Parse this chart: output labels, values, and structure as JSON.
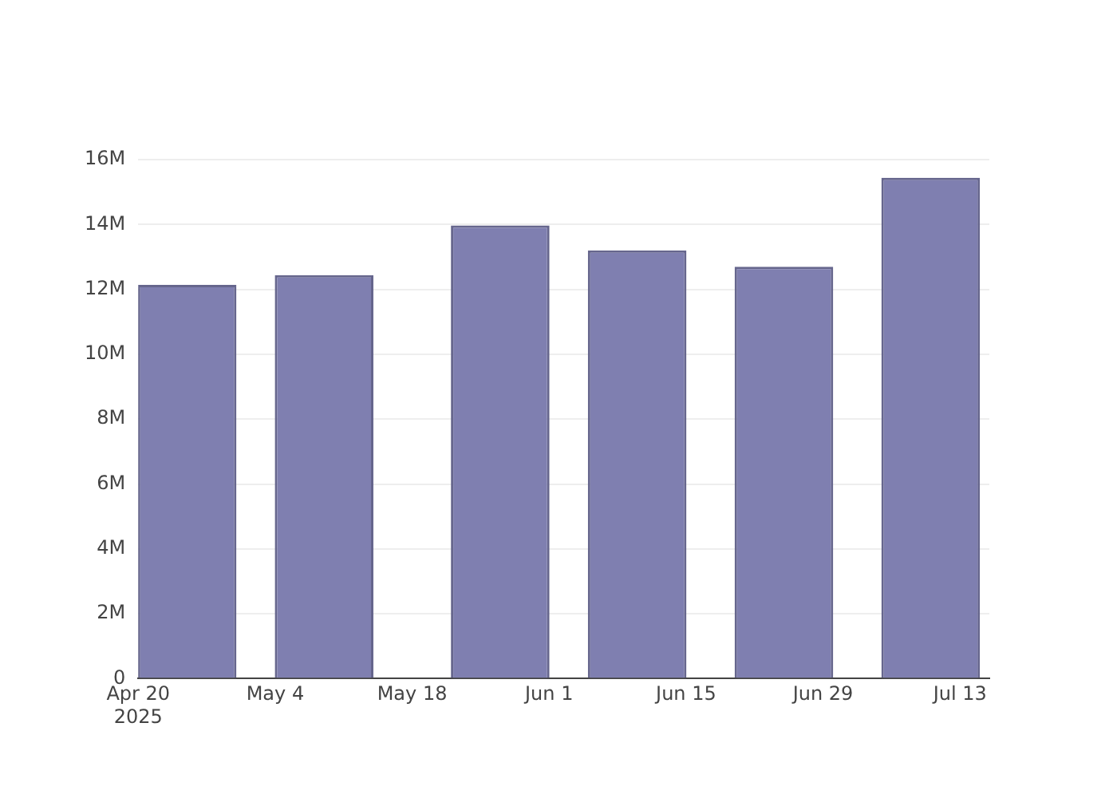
{
  "chart_data": {
    "type": "bar",
    "x": [
      "2025-04-25",
      "2025-05-09",
      "2025-05-27",
      "2025-06-10",
      "2025-06-25",
      "2025-07-10"
    ],
    "values": [
      12140000,
      12440000,
      13970000,
      13200000,
      12700000,
      15440000
    ],
    "color": "#7f7fb0",
    "xlim": [
      "2025-04-20",
      "2025-07-16"
    ],
    "xticks": [
      {
        "value": "2025-04-20",
        "label": "Apr 20\n2025"
      },
      {
        "value": "2025-05-04",
        "label": "May 4"
      },
      {
        "value": "2025-05-18",
        "label": "May 18"
      },
      {
        "value": "2025-06-01",
        "label": "Jun 1"
      },
      {
        "value": "2025-06-15",
        "label": "Jun 15"
      },
      {
        "value": "2025-06-29",
        "label": "Jun 29"
      },
      {
        "value": "2025-07-13",
        "label": "Jul 13"
      }
    ],
    "ylim": [
      0,
      16000000
    ],
    "yticks": [
      0,
      {
        "value": 2000000,
        "label": "2M"
      },
      {
        "value": 4000000,
        "label": "4M"
      },
      {
        "value": 6000000,
        "label": "6M"
      },
      {
        "value": 8000000,
        "label": "8M"
      },
      {
        "value": 10000000,
        "label": "10M"
      },
      {
        "value": 12000000,
        "label": "12M"
      },
      {
        "value": 14000000,
        "label": "14M"
      },
      {
        "value": 16000000,
        "label": "16M"
      }
    ],
    "grid": "y"
  }
}
